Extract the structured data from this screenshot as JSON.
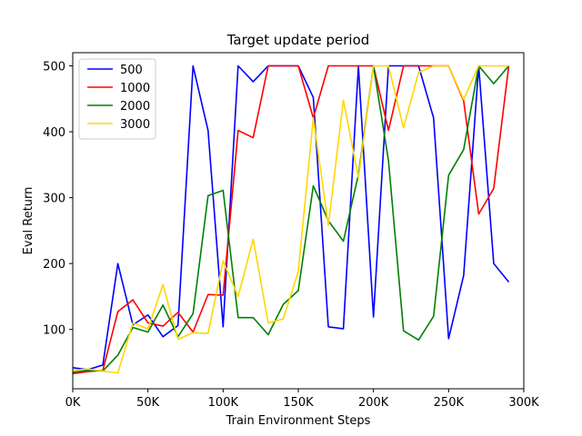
{
  "chart_data": {
    "type": "line",
    "title": "Target update period",
    "xlabel": "Train Environment Steps",
    "ylabel": "Eval Return",
    "xlim": [
      0,
      300000
    ],
    "ylim": [
      10,
      520
    ],
    "xticks": [
      0,
      50000,
      100000,
      150000,
      200000,
      250000,
      300000
    ],
    "xtick_labels": [
      "0K",
      "50K",
      "100K",
      "150K",
      "200K",
      "250K",
      "300K"
    ],
    "yticks": [
      100,
      200,
      300,
      400,
      500
    ],
    "ytick_labels": [
      "100",
      "200",
      "300",
      "400",
      "500"
    ],
    "grid": false,
    "legend_position": "top-left",
    "x": [
      0,
      10000,
      20000,
      30000,
      40000,
      50000,
      60000,
      70000,
      80000,
      90000,
      100000,
      110000,
      120000,
      130000,
      140000,
      150000,
      160000,
      170000,
      180000,
      190000,
      200000,
      210000,
      220000,
      230000,
      240000,
      250000,
      260000,
      270000,
      280000,
      290000
    ],
    "series": [
      {
        "name": "500",
        "color": "#0000ff",
        "values": [
          42,
          39,
          46,
          200,
          107,
          122,
          89,
          106,
          500,
          402,
          104,
          500,
          476,
          500,
          500,
          500,
          452,
          104,
          101,
          500,
          119,
          500,
          500,
          500,
          421,
          86,
          182,
          500,
          200,
          172
        ]
      },
      {
        "name": "1000",
        "color": "#ff0000",
        "values": [
          33,
          36,
          38,
          127,
          145,
          110,
          105,
          126,
          96,
          153,
          152,
          402,
          391,
          500,
          500,
          500,
          421,
          500,
          500,
          500,
          500,
          402,
          500,
          500,
          500,
          500,
          447,
          275,
          314,
          500
        ]
      },
      {
        "name": "2000",
        "color": "#008000",
        "values": [
          35,
          38,
          37,
          61,
          103,
          96,
          137,
          89,
          124,
          303,
          311,
          118,
          118,
          92,
          138,
          159,
          318,
          265,
          234,
          335,
          500,
          356,
          98,
          84,
          120,
          334,
          373,
          500,
          473,
          500
        ]
      },
      {
        "name": "3000",
        "color": "#ffd700",
        "values": [
          38,
          40,
          37,
          34,
          110,
          101,
          168,
          85,
          95,
          94,
          204,
          150,
          237,
          110,
          116,
          188,
          421,
          258,
          448,
          330,
          500,
          500,
          406,
          490,
          500,
          500,
          449,
          500,
          500,
          500
        ]
      }
    ]
  }
}
